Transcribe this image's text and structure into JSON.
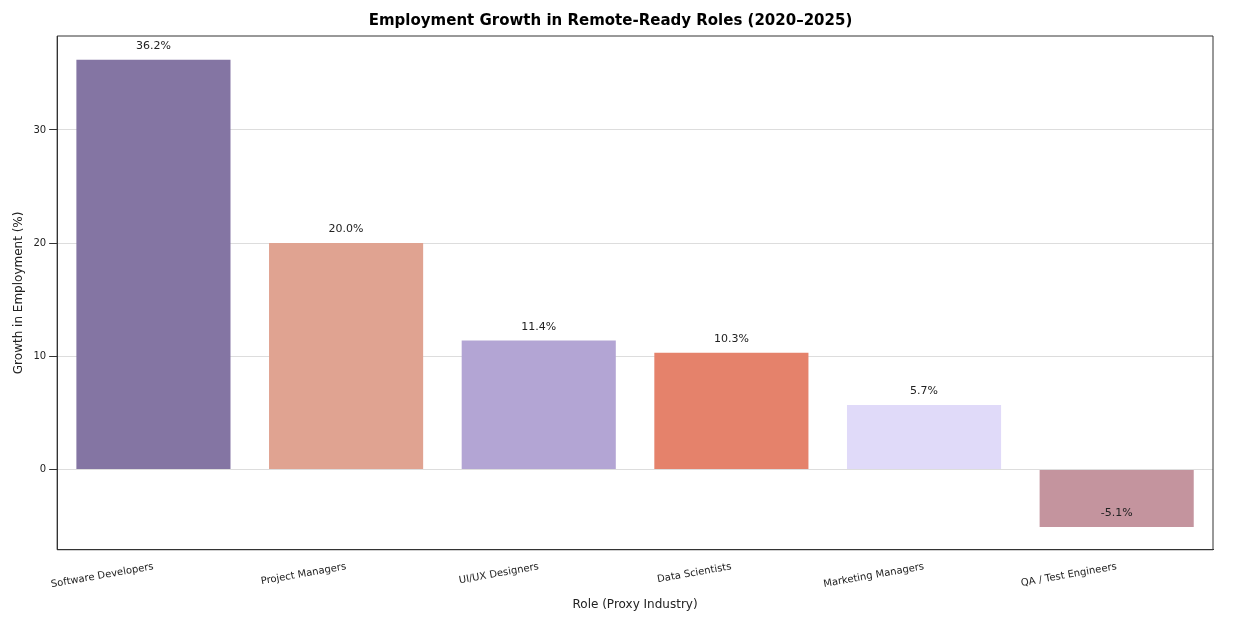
{
  "chart_data": {
    "type": "bar",
    "title": "Employment Growth in Remote-Ready Roles (2020–2025)",
    "xlabel": "Role (Proxy Industry)",
    "ylabel": "Growth in Employment (%)",
    "categories": [
      "Software Developers",
      "Project Managers",
      "UI/UX Designers",
      "Data Scientists",
      "Marketing Managers",
      "QA / Test Engineers"
    ],
    "values": [
      36.2,
      20.0,
      11.4,
      10.3,
      5.7,
      -5.1
    ],
    "colors": [
      "#8475a3",
      "#e0a391",
      "#b3a5d4",
      "#e5826b",
      "#e0daf9",
      "#c4949e"
    ],
    "value_labels": [
      "36.2%",
      "20.0%",
      "11.4%",
      "10.3%",
      "5.7%",
      "-5.1%"
    ],
    "ylim": [
      -7.1,
      38.3
    ],
    "yticks": [
      0,
      10,
      20,
      30
    ],
    "grid": "y",
    "legend": false
  }
}
